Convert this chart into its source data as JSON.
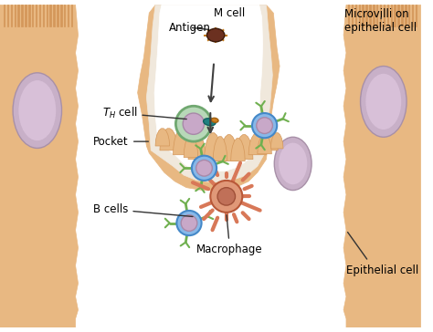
{
  "bg_color": "#FFFFFF",
  "skin_color": "#E8B882",
  "skin_dark": "#D4975A",
  "pocket_color": "#F5E6D0",
  "microvilli_color": "#D4975A",
  "nucleus_color": "#C8A8C8",
  "nucleus_dark": "#A888A8",
  "th_cell_color": "#90C890",
  "th_cell_border": "#60A860",
  "b_cell_color": "#88B8E8",
  "b_cell_border": "#4488C8",
  "macrophage_color": "#D87858",
  "macrophage_border": "#B85838",
  "antigen_color": "#6B3020",
  "antigen_spike": "#C88020",
  "arrow_color": "#404040",
  "text_color": "#000000",
  "label_color": "#333333",
  "green_arm": "#70B050",
  "teal_receptor": "#208080",
  "orange_receptor": "#D08020",
  "labels": {
    "antigen": "Antigen",
    "m_cell": "M cell",
    "microvilli": "Microvilli on\nepithelial cell",
    "th_cell": "Tₕ cell",
    "pocket": "Pocket",
    "b_cells": "B cells",
    "macrophage": "Macrophage",
    "epithelial": "Epithelial cell"
  },
  "figsize": [
    4.74,
    3.64
  ],
  "dpi": 100
}
